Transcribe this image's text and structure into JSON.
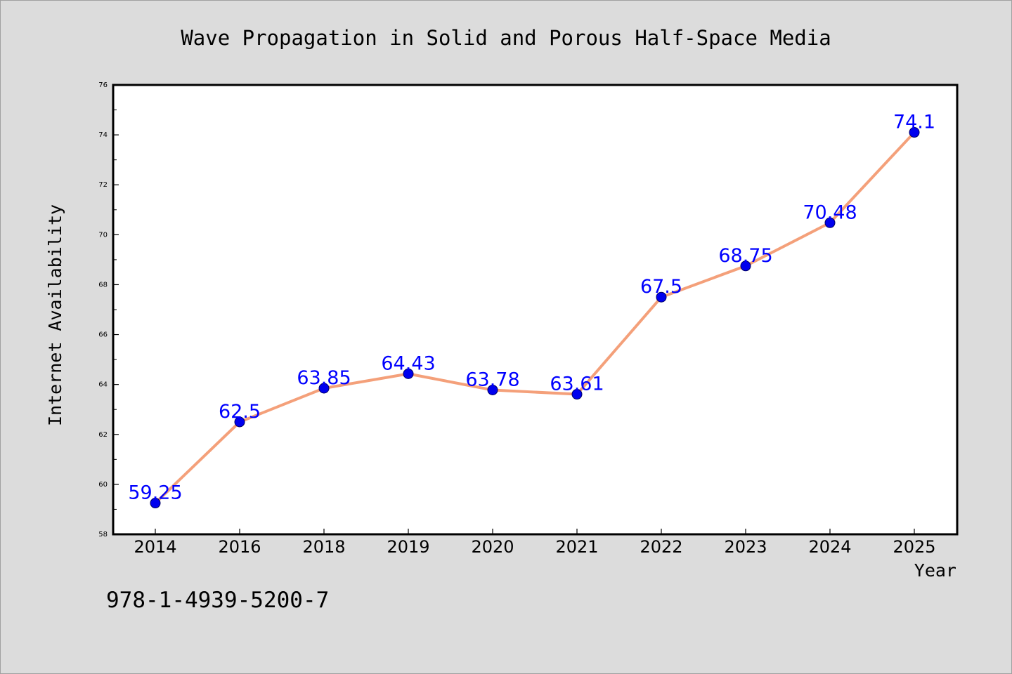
{
  "chart_data": {
    "type": "line",
    "title": "Wave Propagation in Solid and Porous Half-Space Media",
    "xlabel": "Year",
    "ylabel": "Internet Availability",
    "categories": [
      "2014",
      "2016",
      "2018",
      "2019",
      "2020",
      "2021",
      "2022",
      "2023",
      "2024",
      "2025"
    ],
    "series": [
      {
        "values": [
          59.25,
          62.5,
          63.85,
          64.43,
          63.78,
          63.61,
          67.5,
          68.75,
          70.48,
          74.1
        ],
        "data_labels": [
          "59.25",
          "62.5",
          "63.85",
          "64.43",
          "63.78",
          "63.61",
          "67.5",
          "68.75",
          "70.48",
          "74.1"
        ]
      }
    ],
    "ylim": [
      58,
      76
    ],
    "yticks": [
      "58",
      "60",
      "62",
      "64",
      "66",
      "68",
      "70",
      "72",
      "74",
      "76"
    ],
    "grid": false,
    "legend": "none",
    "colors": {
      "line": "#f4a07a",
      "marker": "#0000ee",
      "data_label": "#0000ff",
      "background": "#dcdcdc",
      "plot_area": "#ffffff"
    }
  },
  "annotation": "978-1-4939-5200-7"
}
